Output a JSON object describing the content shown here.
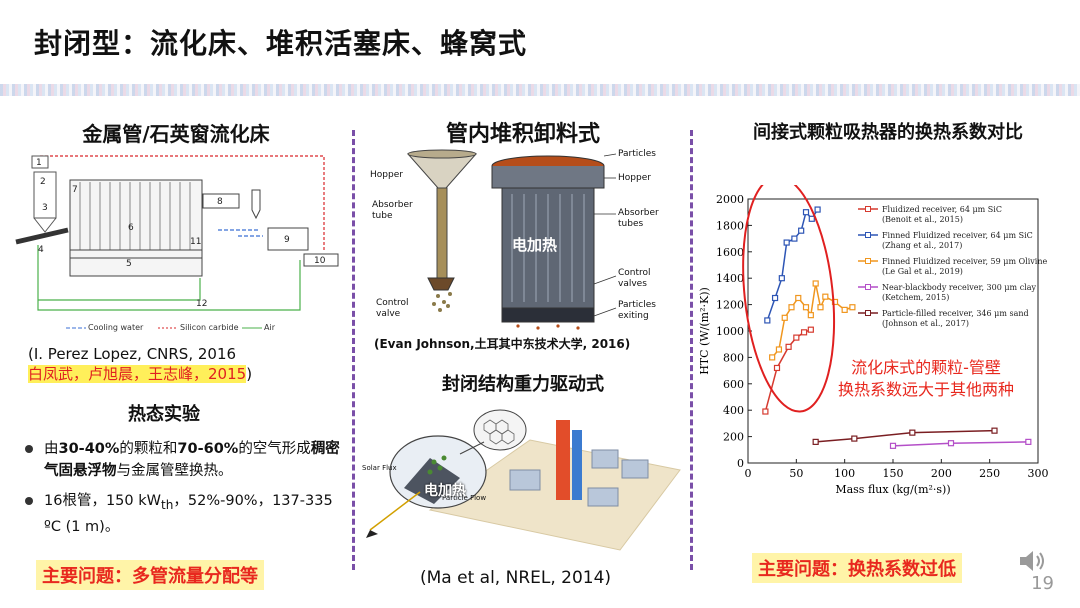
{
  "slide": {
    "title": "封闭型：流化床、堆积活塞床、蜂窝式",
    "page_number": "19"
  },
  "left": {
    "title": "金属管/石英窗流化床",
    "legend": [
      "Cooling water",
      "Silicon carbide",
      "Air"
    ],
    "diagram_numbers": [
      "1",
      "2",
      "3",
      "4",
      "5",
      "6",
      "7",
      "8",
      "9",
      "10",
      "11",
      "12"
    ],
    "cite_line1": "(I. Perez Lopez, CNRS, 2016",
    "cite_line2": "白凤武，卢旭晨，王志峰，2015",
    "cite_line2_end": ")",
    "section_title": "热态实验",
    "bullet1_a": "由",
    "bullet1_b": "30-40%",
    "bullet1_c": "的颗粒和",
    "bullet1_d": "70-60%",
    "bullet1_e": "的空气形成",
    "bullet1_f": "稠密气固悬浮物",
    "bullet1_g": "与金属管壁换热。",
    "bullet2_a": "16根管，150 kW",
    "bullet2_sub": "th",
    "bullet2_b": "，52%-90%，137-335 ºC (1 m)。",
    "problem": "主要问题：多管流量分配等"
  },
  "middle": {
    "title": "管内堆积卸料式",
    "hopper_labels": [
      "Hopper",
      "Absorber tube",
      "Control valve"
    ],
    "right_labels": [
      "Particles",
      "Hopper",
      "Absorber tubes",
      "Control valves",
      "Particles exiting"
    ],
    "overlay": "电加热",
    "cite": "(Evan Johnson,土耳其中东技术大学, 2016)",
    "subtitle": "封闭结构重力驱动式",
    "overlay2": "电加热",
    "solar_flux": "Solar Flux",
    "particle_flow": "Particle Flow",
    "cite2": "(Ma et al, NREL, 2014)"
  },
  "right": {
    "title": "间接式颗粒吸热器的换热系数对比",
    "annotation_line1": "流化床式的颗粒-管壁",
    "annotation_line2": "换热系数远大于其他两种",
    "problem": "主要问题：换热系数过低"
  },
  "chart_data": {
    "type": "line",
    "xlabel": "Mass flux (kg/(m²·s))",
    "ylabel": "HTC (W/(m²·K))",
    "xlim": [
      0,
      300
    ],
    "ylim": [
      0,
      2000
    ],
    "xticks": [
      0,
      50,
      100,
      150,
      200,
      250,
      300
    ],
    "yticks": [
      0,
      200,
      400,
      600,
      800,
      1000,
      1200,
      1400,
      1600,
      1800,
      2000
    ],
    "series": [
      {
        "name": "Fluidized receiver, 64 μm SiC",
        "ref": "(Benoit et al., 2015)",
        "color": "#d63a2f",
        "x": [
          18,
          30,
          42,
          50,
          58,
          65
        ],
        "y": [
          390,
          720,
          880,
          950,
          990,
          1010
        ]
      },
      {
        "name": "Finned Fluidized receiver, 64 μm SiC",
        "ref": "(Zhang et al., 2017)",
        "color": "#2d55b5",
        "x": [
          20,
          28,
          35,
          40,
          48,
          55,
          60,
          66,
          72
        ],
        "y": [
          1080,
          1250,
          1400,
          1670,
          1700,
          1760,
          1900,
          1850,
          1920
        ]
      },
      {
        "name": "Finned Fluidized receiver, 59 μm Olivine",
        "ref": "(Le Gal et al., 2019)",
        "color": "#f0961e",
        "x": [
          25,
          32,
          38,
          45,
          52,
          60,
          65,
          70,
          75,
          80,
          90,
          100,
          108
        ],
        "y": [
          800,
          860,
          1100,
          1180,
          1250,
          1180,
          1120,
          1360,
          1180,
          1260,
          1220,
          1160,
          1180
        ]
      },
      {
        "name": "Near-blackbody receiver, 300 μm clay",
        "ref": "(Ketchem, 2015)",
        "color": "#b44fc8",
        "x": [
          150,
          210,
          290
        ],
        "y": [
          130,
          150,
          160
        ]
      },
      {
        "name": "Particle-filled receiver, 346 μm sand",
        "ref": "(Johnson et al., 2017)",
        "color": "#7a1e22",
        "x": [
          70,
          110,
          170,
          255
        ],
        "y": [
          160,
          185,
          230,
          245
        ]
      }
    ]
  }
}
